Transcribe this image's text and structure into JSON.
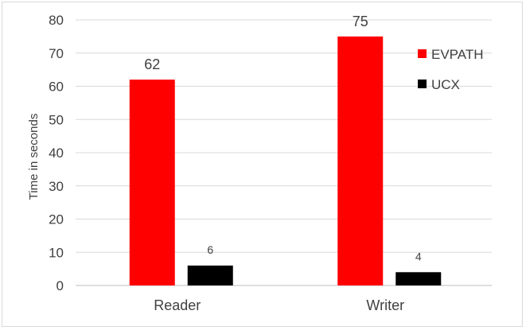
{
  "chart_data": {
    "type": "bar",
    "title": "",
    "xlabel": "",
    "ylabel": "Time in seconds",
    "ylim": [
      0,
      80
    ],
    "yticks": [
      0,
      10,
      20,
      30,
      40,
      50,
      60,
      70,
      80
    ],
    "categories": [
      "Reader",
      "Writer"
    ],
    "series": [
      {
        "name": "EVPATH",
        "values": [
          62,
          75
        ],
        "color": "#ff0000",
        "labels": [
          "62",
          "75"
        ]
      },
      {
        "name": "UCX",
        "values": [
          6,
          4
        ],
        "color": "#000000",
        "labels": [
          "6",
          "4"
        ]
      }
    ],
    "grid": true,
    "legend": "right"
  }
}
